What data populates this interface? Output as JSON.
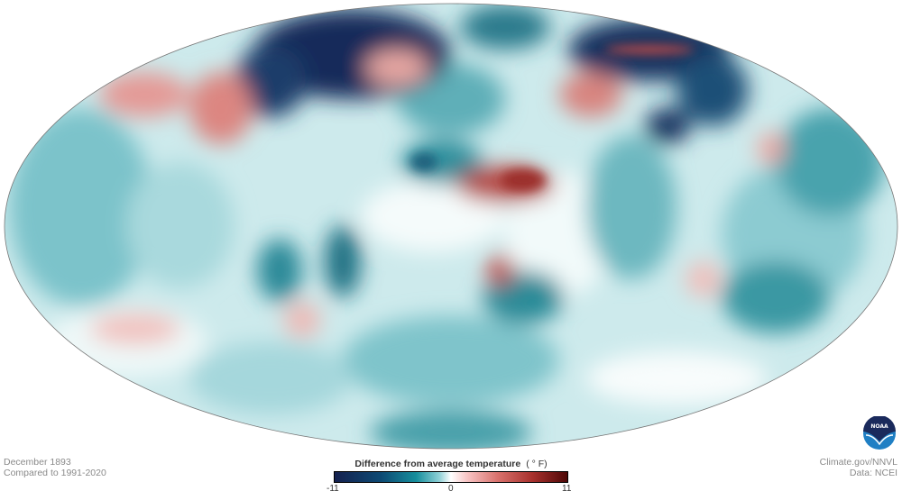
{
  "map": {
    "projection": "Mollweide (global)",
    "legend": {
      "title": "Difference from average temperature",
      "unit": "( ° F)",
      "min_label": "-11",
      "mid_label": "0",
      "max_label": "11",
      "colors": {
        "cold": "#15214f",
        "neutral": "#ffffff",
        "warm": "#4e0707"
      }
    }
  },
  "caption": {
    "date": "December 1893",
    "baseline": "Compared to 1991-2020"
  },
  "credits": {
    "source": "Climate.gov/NNVL",
    "data": "Data: NCEI",
    "logo_text": "NOAA"
  }
}
